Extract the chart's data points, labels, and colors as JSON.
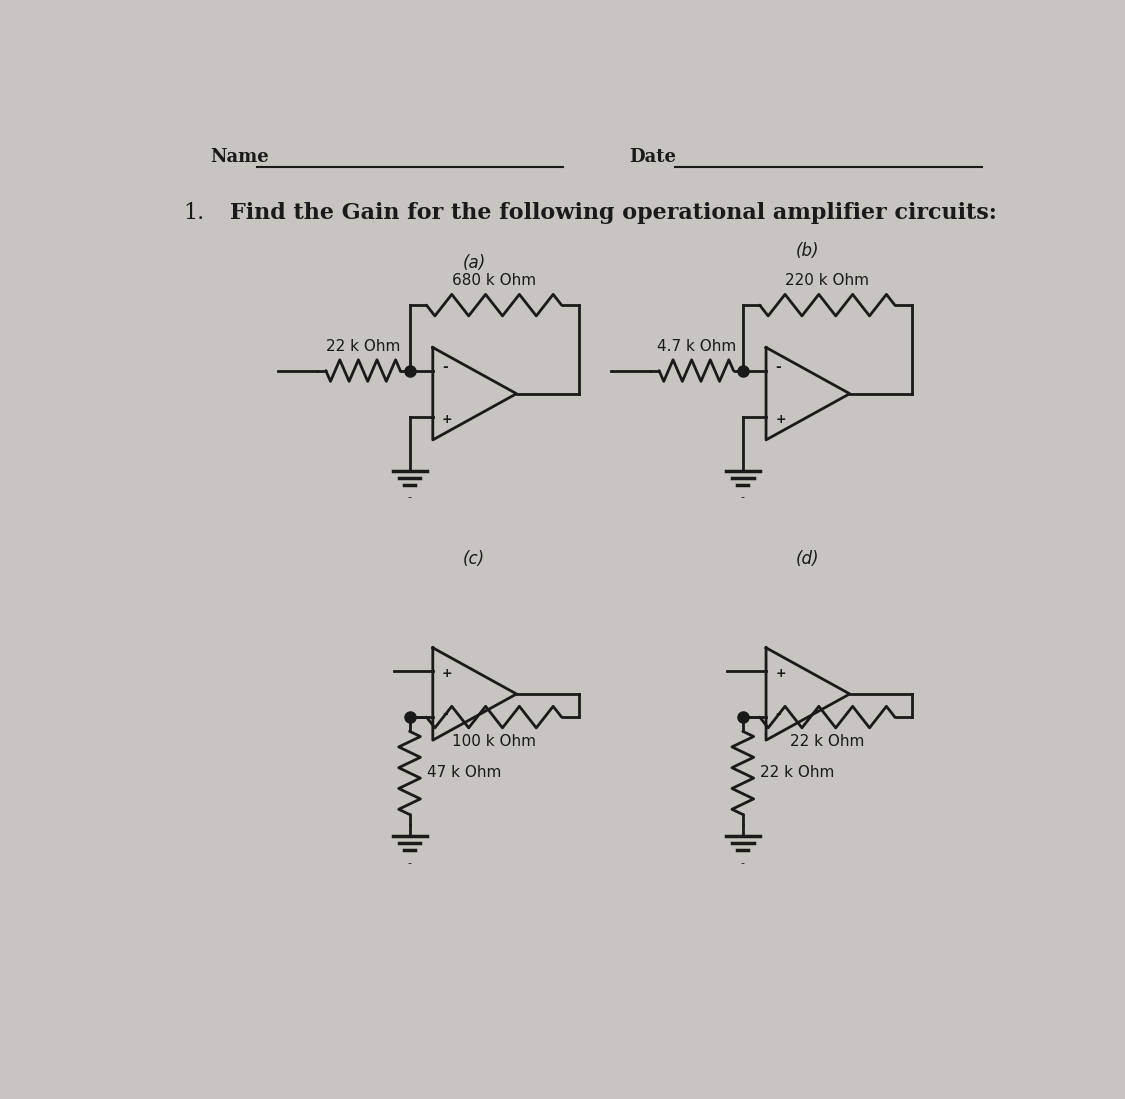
{
  "bg_color": "#c8c4c0",
  "title_text": "Find the Gain for the following operational amplifier circuits:",
  "title_prefix": "1.",
  "name_label": "Name",
  "date_label": "Date",
  "circuit_a": {
    "label": "(a)",
    "r_input_label": "22 k Ohm",
    "r_feedback_label": "680 k Ohm"
  },
  "circuit_b": {
    "label": "(b)",
    "r_input_label": "4.7 k Ohm",
    "r_feedback_label": "220 k Ohm"
  },
  "circuit_c": {
    "label": "(c)",
    "r_feedback_label": "100 k Ohm",
    "r_ground_label": "47 k Ohm"
  },
  "circuit_d": {
    "label": "(d)",
    "r_feedback_label": "22 k Ohm",
    "r_ground_label": "22 k Ohm"
  },
  "line_color": "#1a1a1a",
  "text_color": "#1a1a1a",
  "font_size_title": 16,
  "font_size_resistor": 11,
  "font_size_label": 12,
  "font_size_header": 13,
  "font_size_pm": 9
}
